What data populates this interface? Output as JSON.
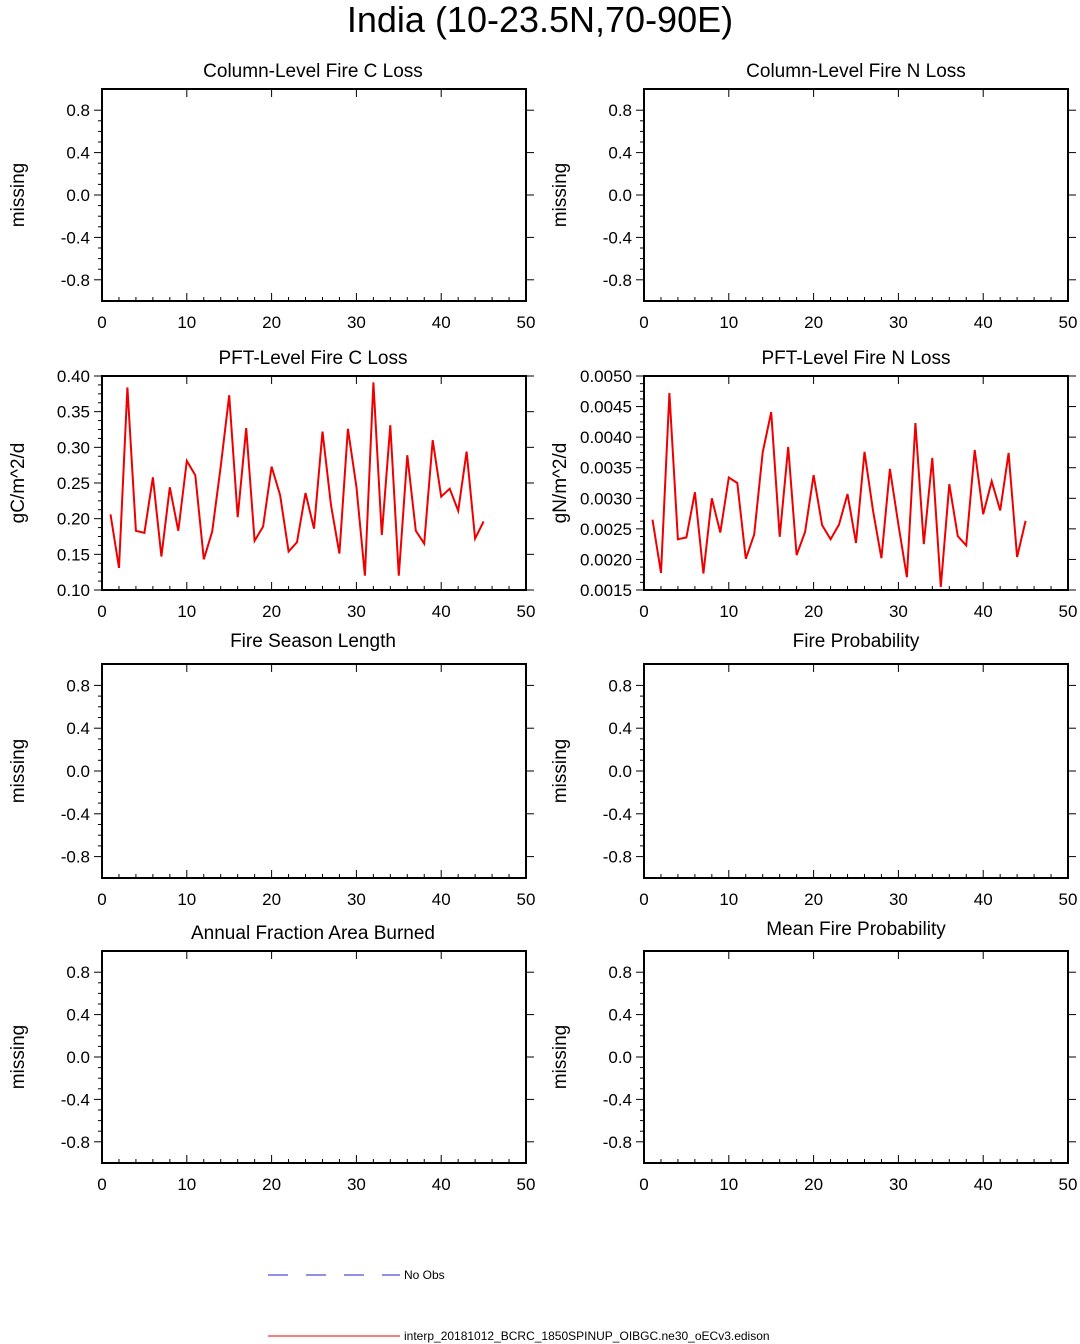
{
  "figure": {
    "title": "India (10-23.5N,70-90E)"
  },
  "legend": {
    "entries": [
      {
        "label": "No Obs",
        "color": "#2222cc",
        "style": "dashed"
      },
      {
        "label": "interp_20181012_BCRC_1850SPINUP_OIBGC.ne30_oECv3.edison",
        "color": "#ee0000",
        "style": "solid"
      }
    ]
  },
  "chart_data": [
    {
      "type": "line",
      "title": "Column-Level Fire C Loss",
      "ylabel": "missing",
      "xlim": [
        0,
        50
      ],
      "ylim": [
        -1,
        1
      ],
      "xticks": [
        0,
        10,
        20,
        30,
        40,
        50
      ],
      "xtick_labels": [
        "0",
        "10",
        "20",
        "30",
        "40",
        "50"
      ],
      "yticks": [
        -0.8,
        -0.4,
        0.0,
        0.4,
        0.8
      ],
      "ytick_labels": [
        "-0.8",
        "-0.4",
        "0.0",
        "0.4",
        "0.8"
      ],
      "series": []
    },
    {
      "type": "line",
      "title": "Column-Level Fire N Loss",
      "ylabel": "missing",
      "xlim": [
        0,
        50
      ],
      "ylim": [
        -1,
        1
      ],
      "xticks": [
        0,
        10,
        20,
        30,
        40,
        50
      ],
      "xtick_labels": [
        "0",
        "10",
        "20",
        "30",
        "40",
        "50"
      ],
      "yticks": [
        -0.8,
        -0.4,
        0.0,
        0.4,
        0.8
      ],
      "ytick_labels": [
        "-0.8",
        "-0.4",
        "0.0",
        "0.4",
        "0.8"
      ],
      "series": []
    },
    {
      "type": "line",
      "title": "PFT-Level Fire C Loss",
      "ylabel": "gC/m^2/d",
      "xlim": [
        0,
        50
      ],
      "ylim": [
        0.1,
        0.4
      ],
      "xticks": [
        0,
        10,
        20,
        30,
        40,
        50
      ],
      "xtick_labels": [
        "0",
        "10",
        "20",
        "30",
        "40",
        "50"
      ],
      "yticks": [
        0.1,
        0.15,
        0.2,
        0.25,
        0.3,
        0.35,
        0.4
      ],
      "ytick_labels": [
        "0.10",
        "0.15",
        "0.20",
        "0.25",
        "0.30",
        "0.35",
        "0.40"
      ],
      "series": [
        {
          "color": "#ee0000",
          "x": [
            1,
            2,
            3,
            4,
            5,
            6,
            7,
            8,
            9,
            10,
            11,
            12,
            13,
            14,
            15,
            16,
            17,
            18,
            19,
            20,
            21,
            22,
            23,
            24,
            25,
            26,
            27,
            28,
            29,
            30,
            31,
            32,
            33,
            34,
            35,
            36,
            37,
            38,
            39,
            40,
            41,
            42,
            43,
            44,
            45
          ],
          "values": [
            0.206,
            0.131,
            0.384,
            0.183,
            0.18,
            0.258,
            0.147,
            0.244,
            0.183,
            0.281,
            0.261,
            0.143,
            0.182,
            0.273,
            0.373,
            0.202,
            0.327,
            0.169,
            0.189,
            0.273,
            0.233,
            0.154,
            0.167,
            0.236,
            0.186,
            0.322,
            0.219,
            0.151,
            0.326,
            0.245,
            0.12,
            0.391,
            0.177,
            0.331,
            0.12,
            0.289,
            0.183,
            0.165,
            0.31,
            0.231,
            0.242,
            0.211,
            0.294,
            0.172,
            0.196
          ]
        }
      ]
    },
    {
      "type": "line",
      "title": "PFT-Level Fire N Loss",
      "ylabel": "gN/m^2/d",
      "xlim": [
        0,
        50
      ],
      "ylim": [
        0.0015,
        0.005
      ],
      "xticks": [
        0,
        10,
        20,
        30,
        40,
        50
      ],
      "xtick_labels": [
        "0",
        "10",
        "20",
        "30",
        "40",
        "50"
      ],
      "yticks": [
        0.0015,
        0.002,
        0.0025,
        0.003,
        0.0035,
        0.004,
        0.0045,
        0.005
      ],
      "ytick_labels": [
        "0.0015",
        "0.0020",
        "0.0025",
        "0.0030",
        "0.0035",
        "0.0040",
        "0.0045",
        "0.0050"
      ],
      "series": [
        {
          "color": "#ee0000",
          "x": [
            1,
            2,
            3,
            4,
            5,
            6,
            7,
            8,
            9,
            10,
            11,
            12,
            13,
            14,
            15,
            16,
            17,
            18,
            19,
            20,
            21,
            22,
            23,
            24,
            25,
            26,
            27,
            28,
            29,
            30,
            31,
            32,
            33,
            34,
            35,
            36,
            37,
            38,
            39,
            40,
            41,
            42,
            43,
            44,
            45
          ],
          "values": [
            0.00265,
            0.00178,
            0.00472,
            0.00233,
            0.00236,
            0.0031,
            0.00177,
            0.003,
            0.00244,
            0.00334,
            0.00325,
            0.00201,
            0.00241,
            0.00375,
            0.00441,
            0.00237,
            0.00384,
            0.00207,
            0.00245,
            0.00338,
            0.00256,
            0.00233,
            0.00257,
            0.00307,
            0.00227,
            0.00376,
            0.0028,
            0.00202,
            0.00348,
            0.00257,
            0.00171,
            0.00423,
            0.00225,
            0.00366,
            0.00155,
            0.00323,
            0.00238,
            0.00223,
            0.00379,
            0.00274,
            0.00328,
            0.0028,
            0.00374,
            0.00204,
            0.00263
          ]
        }
      ]
    },
    {
      "type": "line",
      "title": "Fire Season Length",
      "ylabel": "missing",
      "xlim": [
        0,
        50
      ],
      "ylim": [
        -1,
        1
      ],
      "xticks": [
        0,
        10,
        20,
        30,
        40,
        50
      ],
      "xtick_labels": [
        "0",
        "10",
        "20",
        "30",
        "40",
        "50"
      ],
      "yticks": [
        -0.8,
        -0.4,
        0.0,
        0.4,
        0.8
      ],
      "ytick_labels": [
        "-0.8",
        "-0.4",
        "0.0",
        "0.4",
        "0.8"
      ],
      "series": []
    },
    {
      "type": "line",
      "title": "Fire Probability",
      "ylabel": "missing",
      "xlim": [
        0,
        50
      ],
      "ylim": [
        -1,
        1
      ],
      "xticks": [
        0,
        10,
        20,
        30,
        40,
        50
      ],
      "xtick_labels": [
        "0",
        "10",
        "20",
        "30",
        "40",
        "50"
      ],
      "yticks": [
        -0.8,
        -0.4,
        0.0,
        0.4,
        0.8
      ],
      "ytick_labels": [
        "-0.8",
        "-0.4",
        "0.0",
        "0.4",
        "0.8"
      ],
      "series": []
    },
    {
      "type": "line",
      "title": "Annual Fraction Area Burned",
      "ylabel": "missing",
      "xlim": [
        0,
        50
      ],
      "ylim": [
        -1,
        1
      ],
      "xticks": [
        0,
        10,
        20,
        30,
        40,
        50
      ],
      "xtick_labels": [
        "0",
        "10",
        "20",
        "30",
        "40",
        "50"
      ],
      "yticks": [
        -0.8,
        -0.4,
        0.0,
        0.4,
        0.8
      ],
      "ytick_labels": [
        "-0.8",
        "-0.4",
        "0.0",
        "0.4",
        "0.8"
      ],
      "series": []
    },
    {
      "type": "line",
      "title": "Mean Fire Probability",
      "ylabel": "missing",
      "xlim": [
        0,
        50
      ],
      "ylim": [
        -1,
        1
      ],
      "xticks": [
        0,
        10,
        20,
        30,
        40,
        50
      ],
      "xtick_labels": [
        "0",
        "10",
        "20",
        "30",
        "40",
        "50"
      ],
      "yticks": [
        -0.8,
        -0.4,
        0.0,
        0.4,
        0.8
      ],
      "ytick_labels": [
        "-0.8",
        "-0.4",
        "0.0",
        "0.4",
        "0.8"
      ],
      "series": []
    }
  ]
}
